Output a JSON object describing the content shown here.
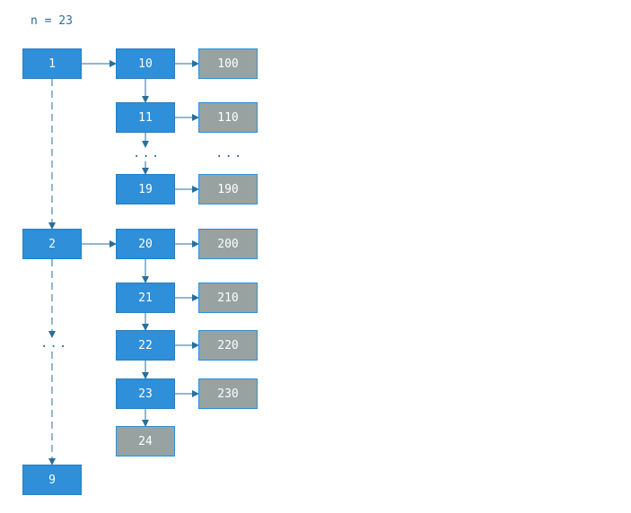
{
  "header": {
    "text": "n = 23"
  },
  "colors": {
    "blue": "#2f8fd8",
    "gray": "#97a2a1",
    "edge": "#2a6f9a"
  },
  "nodes": [
    {
      "id": "1",
      "label": "1",
      "style": "blue"
    },
    {
      "id": "2",
      "label": "2",
      "style": "blue"
    },
    {
      "id": "9",
      "label": "9",
      "style": "blue"
    },
    {
      "id": "10",
      "label": "10",
      "style": "blue"
    },
    {
      "id": "11",
      "label": "11",
      "style": "blue"
    },
    {
      "id": "19",
      "label": "19",
      "style": "blue"
    },
    {
      "id": "20",
      "label": "20",
      "style": "blue"
    },
    {
      "id": "21",
      "label": "21",
      "style": "blue"
    },
    {
      "id": "22",
      "label": "22",
      "style": "blue"
    },
    {
      "id": "23",
      "label": "23",
      "style": "blue"
    },
    {
      "id": "24",
      "label": "24",
      "style": "gray"
    },
    {
      "id": "100",
      "label": "100",
      "style": "gray"
    },
    {
      "id": "110",
      "label": "110",
      "style": "gray"
    },
    {
      "id": "190",
      "label": "190",
      "style": "gray"
    },
    {
      "id": "200",
      "label": "200",
      "style": "gray"
    },
    {
      "id": "210",
      "label": "210",
      "style": "gray"
    },
    {
      "id": "220",
      "label": "220",
      "style": "gray"
    },
    {
      "id": "230",
      "label": "230",
      "style": "gray"
    }
  ],
  "ellipses": {
    "left": "...",
    "middle": "...",
    "right": "..."
  },
  "edges": [
    {
      "from": "1",
      "to": "10",
      "style": "solid"
    },
    {
      "from": "10",
      "to": "100",
      "style": "solid"
    },
    {
      "from": "10",
      "to": "11",
      "style": "solid"
    },
    {
      "from": "11",
      "to": "110",
      "style": "solid"
    },
    {
      "from": "11",
      "to": "ellipsis-middle",
      "style": "solid"
    },
    {
      "from": "ellipsis-middle",
      "to": "19",
      "style": "solid"
    },
    {
      "from": "19",
      "to": "190",
      "style": "solid"
    },
    {
      "from": "1",
      "to": "2",
      "style": "dashed"
    },
    {
      "from": "2",
      "to": "20",
      "style": "solid"
    },
    {
      "from": "20",
      "to": "200",
      "style": "solid"
    },
    {
      "from": "20",
      "to": "21",
      "style": "solid"
    },
    {
      "from": "21",
      "to": "210",
      "style": "solid"
    },
    {
      "from": "21",
      "to": "22",
      "style": "solid"
    },
    {
      "from": "22",
      "to": "220",
      "style": "solid"
    },
    {
      "from": "22",
      "to": "23",
      "style": "solid"
    },
    {
      "from": "23",
      "to": "230",
      "style": "solid"
    },
    {
      "from": "23",
      "to": "24",
      "style": "solid"
    },
    {
      "from": "2",
      "to": "ellipsis-left",
      "style": "dashed"
    },
    {
      "from": "ellipsis-left",
      "to": "9",
      "style": "dashed"
    }
  ]
}
